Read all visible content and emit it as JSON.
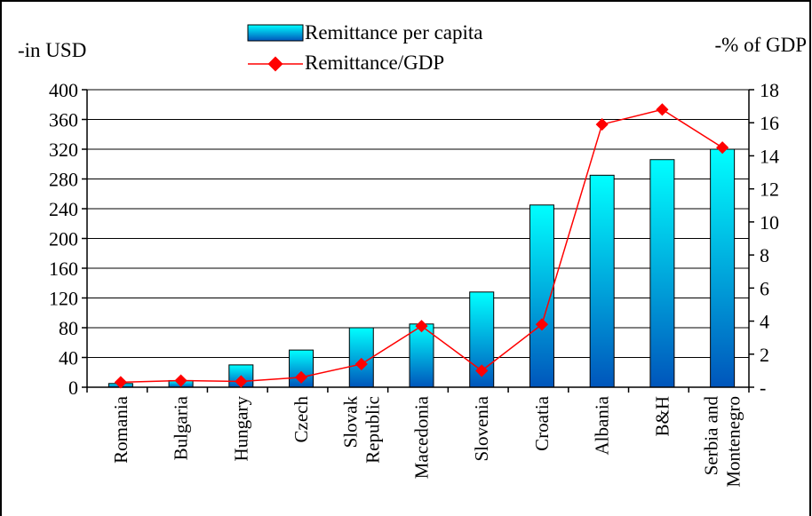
{
  "chart_data": {
    "type": "bar",
    "categories": [
      "Romania",
      "Bulgaria",
      "Hungary",
      "Czech",
      "Slovak Republic",
      "Macedonia",
      "Slovenia",
      "Croatia",
      "Albania",
      "B&H",
      "Serbia and Montenegro"
    ],
    "category_lines": [
      [
        "Romania"
      ],
      [
        "Bulgaria"
      ],
      [
        "Hungary"
      ],
      [
        "Czech"
      ],
      [
        "Slovak",
        "Republic"
      ],
      [
        "Macedonia"
      ],
      [
        "Slovenia"
      ],
      [
        "Croatia"
      ],
      [
        "Albania"
      ],
      [
        "B&H"
      ],
      [
        "Serbia and",
        "Montenegro"
      ]
    ],
    "series": [
      {
        "name": "Remittance per capita",
        "type": "bar",
        "axis": "left",
        "values": [
          5,
          9,
          30,
          50,
          80,
          85,
          128,
          245,
          285,
          306,
          320
        ]
      },
      {
        "name": "Remittance/GDP",
        "type": "line",
        "axis": "right",
        "values": [
          0.3,
          0.4,
          0.35,
          0.6,
          1.4,
          3.7,
          1.0,
          3.8,
          15.9,
          16.8,
          14.5
        ]
      }
    ],
    "left_axis": {
      "label": "-in USD",
      "ylim": [
        0,
        400
      ],
      "ticks": [
        "0",
        "40",
        "80",
        "120",
        "160",
        "200",
        "240",
        "280",
        "320",
        "360",
        "400"
      ]
    },
    "right_axis": {
      "label": "-% of GDP",
      "ylim": [
        0,
        18
      ],
      "ticks": [
        "-",
        "2",
        "4",
        "6",
        "8",
        "10",
        "12",
        "14",
        "16",
        "18"
      ]
    },
    "grid": true,
    "legend_position": "top-center",
    "colors": {
      "bar_top": "#00ffff",
      "bar_bottom": "#0055bb",
      "line": "#ff0000",
      "frame": "#000000"
    }
  }
}
